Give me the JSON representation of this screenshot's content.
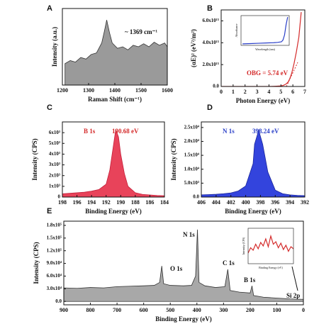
{
  "chart_data": [
    {
      "type": "area",
      "label": "A",
      "xlabel": "Raman Shift (cm⁻¹)",
      "ylabel": "Intensity (a.u.)",
      "annotations": [
        {
          "text": "~ 1369 cm⁻¹",
          "color": "#111111"
        }
      ],
      "x": [
        1210,
        1230,
        1250,
        1270,
        1290,
        1310,
        1330,
        1350,
        1360,
        1369,
        1380,
        1390,
        1410,
        1430,
        1450,
        1470,
        1490,
        1510,
        1530,
        1550,
        1570,
        1590,
        1600
      ],
      "values": [
        28,
        32,
        30,
        36,
        34,
        40,
        42,
        55,
        70,
        85,
        68,
        55,
        48,
        50,
        46,
        52,
        50,
        54,
        50,
        56,
        52,
        55,
        50
      ],
      "color": "#9a9a9a",
      "line_color": "#333333",
      "xlim": [
        1200,
        1600
      ],
      "ylim": [
        0,
        100
      ],
      "xticks": [
        1200,
        1300,
        1400,
        1500,
        1600
      ]
    },
    {
      "type": "line",
      "label": "B",
      "xlabel": "Photon Energy (eV)",
      "ylabel": "(αE)² (eV²/m²)",
      "annotations": [
        {
          "text": "OBG = 5.74 eV",
          "color": "#d42a2a"
        }
      ],
      "x": [
        0,
        1,
        2,
        3,
        4,
        4.5,
        5,
        5.2,
        5.4,
        5.6,
        5.74,
        5.9,
        6.1,
        6.3,
        6.5,
        6.7
      ],
      "values": [
        0,
        0,
        0,
        0,
        0,
        20000000000000.0,
        50000000000000.0,
        100000000000000.0,
        200000000000000.0,
        400000000000000.0,
        700000000000000.0,
        1200000000000000.0,
        2100000000000000.0,
        3200000000000000.0,
        4500000000000000.0,
        6800000000000000.0
      ],
      "color": "#d42a2a",
      "xlim": [
        0,
        7
      ],
      "ylim": [
        0,
        7000000000000000.0
      ],
      "xticks": [
        0,
        1,
        2,
        3,
        4,
        5,
        6,
        7
      ],
      "yticks": [
        {
          "value": 0,
          "label": "0.0"
        },
        {
          "value": 2000000000000000.0,
          "label": "2.0x10¹⁵"
        },
        {
          "value": 4000000000000000.0,
          "label": "4.0x10¹⁵"
        },
        {
          "value": 6000000000000000.0,
          "label": "6.0x10¹⁵"
        }
      ]
    },
    {
      "type": "line",
      "inset": true,
      "xlabel": "Wavelength (nm)",
      "ylabel": "Absorbance",
      "x": [
        200,
        300,
        400,
        500,
        600,
        650,
        700,
        720,
        740,
        760,
        780
      ],
      "values": [
        0.05,
        0.06,
        0.07,
        0.08,
        0.09,
        0.1,
        0.12,
        0.18,
        0.35,
        0.7,
        0.95
      ],
      "color": "#2a3fc8",
      "xlim": [
        180,
        800
      ],
      "ylim": [
        0,
        1
      ]
    },
    {
      "type": "area",
      "label": "C",
      "xlabel": "Binding Energy (eV)",
      "ylabel": "Intensity (CPS)",
      "annotations": [
        {
          "text": "B 1s",
          "color": "#d42a2a"
        },
        {
          "text": "190.68 eV",
          "color": "#d42a2a"
        }
      ],
      "x": [
        198,
        197,
        196,
        195,
        194,
        193,
        192,
        191.5,
        191,
        190.68,
        190.3,
        190,
        189.5,
        189,
        188,
        187,
        186,
        185,
        184
      ],
      "values": [
        300,
        350,
        400,
        450,
        550,
        700,
        1200,
        2500,
        4800,
        6300,
        5600,
        4000,
        2200,
        1000,
        400,
        250,
        200,
        150,
        120
      ],
      "color": "#e8435a",
      "line_color": "#c41f3a",
      "xlim": [
        198,
        184
      ],
      "ylim": [
        0,
        7000
      ],
      "xticks": [
        198,
        196,
        194,
        192,
        190,
        188,
        186,
        184
      ],
      "yticks": [
        0,
        {
          "value": 1000,
          "label": "1x10³"
        },
        {
          "value": 2000,
          "label": "2x10³"
        },
        {
          "value": 3000,
          "label": "3x10³"
        },
        {
          "value": 4000,
          "label": "4x10³"
        },
        {
          "value": 5000,
          "label": "5x10³"
        },
        {
          "value": 6000,
          "label": "6x10³"
        }
      ]
    },
    {
      "type": "area",
      "label": "D",
      "xlabel": "Binding Energy (eV)",
      "ylabel": "Intensity (CPS)",
      "annotations": [
        {
          "text": "N 1s",
          "color": "#2a3fc8"
        },
        {
          "text": "398.24 eV",
          "color": "#2a3fc8"
        }
      ],
      "x": [
        406,
        405,
        404,
        403,
        402,
        401,
        400,
        399,
        398.8,
        398.24,
        397.7,
        397,
        396,
        395,
        394,
        393,
        392
      ],
      "values": [
        800,
        900,
        1000,
        1200,
        1500,
        2200,
        4000,
        12000,
        19000,
        24000,
        19000,
        9000,
        2500,
        1200,
        800,
        600,
        500
      ],
      "color": "#3344dd",
      "line_color": "#1a2699",
      "xlim": [
        406,
        392
      ],
      "ylim": [
        0,
        27000
      ],
      "xticks": [
        406,
        404,
        402,
        400,
        398,
        396,
        394,
        392
      ],
      "yticks": [
        {
          "value": 0,
          "label": "0.0"
        },
        {
          "value": 5000,
          "label": "5.0x10³"
        },
        {
          "value": 10000,
          "label": "1.0x10⁴"
        },
        {
          "value": 15000,
          "label": "1.5x10⁴"
        },
        {
          "value": 20000,
          "label": "2.0x10⁴"
        },
        {
          "value": 25000,
          "label": "2.5x10⁴"
        }
      ]
    },
    {
      "type": "area",
      "label": "E",
      "xlabel": "Binding Energy (eV)",
      "ylabel": "Intensity (CPS)",
      "annotations": [
        {
          "text": "O 1s",
          "color": "#111111"
        },
        {
          "text": "N 1s",
          "color": "#111111"
        },
        {
          "text": "C 1s",
          "color": "#111111"
        },
        {
          "text": "B 1s",
          "color": "#111111"
        },
        {
          "text": "Si 2p",
          "color": "#111111"
        }
      ],
      "x": [
        900,
        850,
        800,
        750,
        700,
        650,
        600,
        560,
        540,
        532,
        525,
        500,
        450,
        420,
        405,
        398,
        392,
        370,
        330,
        295,
        284,
        275,
        240,
        200,
        193,
        187,
        150,
        100,
        50,
        0
      ],
      "values": [
        32000,
        31000,
        33000,
        32000,
        35000,
        36000,
        37000,
        38000,
        45000,
        84000,
        42000,
        38000,
        37000,
        38000,
        60000,
        170000,
        45000,
        37000,
        33000,
        35000,
        76000,
        26000,
        22000,
        20000,
        37000,
        14000,
        10000,
        8000,
        6000,
        5000
      ],
      "color": "#a8a8a8",
      "line_color": "#333333",
      "xlim": [
        900,
        0
      ],
      "ylim": [
        -8000,
        190000
      ],
      "xticks": [
        900,
        800,
        700,
        600,
        500,
        400,
        300,
        200,
        100,
        0
      ],
      "yticks": [
        {
          "value": 0,
          "label": "0.0"
        },
        {
          "value": 30000,
          "label": "3.0x10⁴"
        },
        {
          "value": 60000,
          "label": "6.0x10⁴"
        },
        {
          "value": 90000,
          "label": "9.0x10⁴"
        },
        {
          "value": 120000,
          "label": "1.2x10⁵"
        },
        {
          "value": 150000,
          "label": "1.5x10⁵"
        },
        {
          "value": 180000,
          "label": "1.8x10⁵"
        }
      ]
    },
    {
      "type": "line",
      "inset": true,
      "xlabel": "Binding Energy (eV)",
      "ylabel": "Intensity (CPS)",
      "x": [
        96,
        96.5,
        97,
        97.5,
        98,
        98.5,
        99,
        99.5,
        100,
        100.5,
        101,
        101.5,
        102,
        102.5,
        103,
        103.5,
        104,
        104.5,
        105
      ],
      "values": [
        30,
        45,
        38,
        55,
        42,
        60,
        50,
        70,
        48,
        78,
        55,
        62,
        45,
        58,
        40,
        52,
        35,
        48,
        42
      ],
      "color": "#d42a2a",
      "xlim": [
        96,
        105
      ],
      "ylim": [
        0,
        100
      ]
    }
  ]
}
